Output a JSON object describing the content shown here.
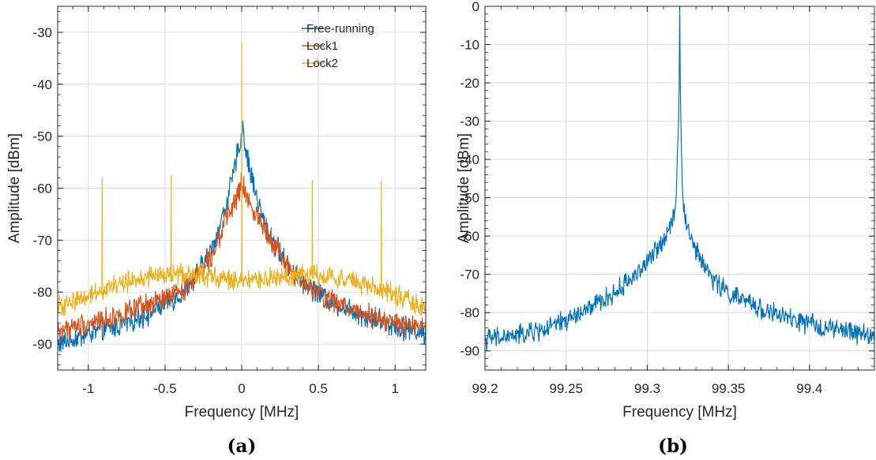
{
  "figure": {
    "panel_labels": [
      "(a)",
      "(b)"
    ]
  },
  "colors": {
    "free_running": "#0072BD",
    "lock1": "#D95319",
    "lock2": "#EDB120",
    "grid": "#dcdcdc",
    "axis": "#262626"
  },
  "chart_data": [
    {
      "type": "line",
      "panel": "(a)",
      "xlabel": "Frequency [MHz]",
      "ylabel": "Amplitude [dBm]",
      "xlim": [
        -1.2,
        1.2
      ],
      "ylim": [
        -95,
        -25
      ],
      "xticks": [
        -1,
        -0.5,
        0,
        0.5,
        1
      ],
      "xtick_labels": [
        "-1",
        "-0.5",
        "0",
        "0.5",
        "1"
      ],
      "yticks": [
        -30,
        -40,
        -50,
        -60,
        -70,
        -80,
        -90
      ],
      "ytick_labels": [
        "-30",
        "-40",
        "-50",
        "-60",
        "-70",
        "-80",
        "-90"
      ],
      "grid": true,
      "legend_position": "top-right",
      "series": [
        {
          "name": "Free-running",
          "color": "#0072BD",
          "noise": 1.8,
          "points": [
            [
              -1.2,
              -90
            ],
            [
              -1.0,
              -88
            ],
            [
              -0.8,
              -86.5
            ],
            [
              -0.6,
              -84
            ],
            [
              -0.4,
              -80.5
            ],
            [
              -0.3,
              -77
            ],
            [
              -0.2,
              -72
            ],
            [
              -0.15,
              -68
            ],
            [
              -0.1,
              -63
            ],
            [
              -0.05,
              -57
            ],
            [
              -0.02,
              -52
            ],
            [
              0,
              -50
            ],
            [
              0.01,
              -47
            ],
            [
              0.02,
              -52
            ],
            [
              0.05,
              -56
            ],
            [
              0.1,
              -62
            ],
            [
              0.15,
              -67
            ],
            [
              0.2,
              -70
            ],
            [
              0.3,
              -75
            ],
            [
              0.4,
              -78
            ],
            [
              0.6,
              -82
            ],
            [
              0.8,
              -84.5
            ],
            [
              1.0,
              -86.5
            ],
            [
              1.2,
              -88
            ]
          ],
          "spikes": []
        },
        {
          "name": "Lock1",
          "color": "#D95319",
          "noise": 1.8,
          "points": [
            [
              -1.2,
              -87.5
            ],
            [
              -1.0,
              -86
            ],
            [
              -0.8,
              -84.5
            ],
            [
              -0.6,
              -82.5
            ],
            [
              -0.4,
              -80
            ],
            [
              -0.3,
              -77
            ],
            [
              -0.2,
              -73
            ],
            [
              -0.1,
              -66
            ],
            [
              -0.05,
              -63
            ],
            [
              -0.02,
              -61
            ],
            [
              0,
              -59
            ],
            [
              0.02,
              -61
            ],
            [
              0.05,
              -63
            ],
            [
              0.1,
              -65
            ],
            [
              0.2,
              -70
            ],
            [
              0.3,
              -75
            ],
            [
              0.4,
              -78.5
            ],
            [
              0.6,
              -82
            ],
            [
              0.8,
              -84
            ],
            [
              1.0,
              -86
            ],
            [
              1.2,
              -87
            ]
          ],
          "spikes": []
        },
        {
          "name": "Lock2",
          "color": "#EDB120",
          "noise": 1.6,
          "points": [
            [
              -1.2,
              -83
            ],
            [
              -1.0,
              -80.5
            ],
            [
              -0.8,
              -78.5
            ],
            [
              -0.6,
              -77
            ],
            [
              -0.4,
              -76.5
            ],
            [
              -0.2,
              -77
            ],
            [
              0,
              -78
            ],
            [
              0.2,
              -77.5
            ],
            [
              0.4,
              -76.5
            ],
            [
              0.6,
              -77
            ],
            [
              0.8,
              -78.5
            ],
            [
              1.0,
              -80.5
            ],
            [
              1.2,
              -83
            ]
          ],
          "spikes": [
            [
              -0.91,
              -58
            ],
            [
              -0.46,
              -57.5
            ],
            [
              0,
              -31.8
            ],
            [
              0.46,
              -58.5
            ],
            [
              0.91,
              -58.5
            ]
          ]
        }
      ]
    },
    {
      "type": "line",
      "panel": "(b)",
      "xlabel": "Frequency [MHz]",
      "ylabel": "Amplitude [dBm]",
      "xlim": [
        99.2,
        99.44
      ],
      "ylim": [
        -95,
        0
      ],
      "xticks": [
        99.2,
        99.25,
        99.3,
        99.35,
        99.4
      ],
      "xtick_labels": [
        "99.2",
        "99.25",
        "99.3",
        "99.35",
        "99.4"
      ],
      "yticks": [
        0,
        -10,
        -20,
        -30,
        -40,
        -50,
        -60,
        -70,
        -80,
        -90
      ],
      "ytick_labels": [
        "0",
        "-10",
        "-20",
        "-30",
        "-40",
        "-50",
        "-60",
        "-70",
        "-80",
        "-90"
      ],
      "grid": true,
      "series": [
        {
          "color": "#0072BD",
          "noise": 2.2,
          "points": [
            [
              99.2,
              -87
            ],
            [
              99.22,
              -86
            ],
            [
              99.24,
              -84
            ],
            [
              99.26,
              -80
            ],
            [
              99.28,
              -75
            ],
            [
              99.29,
              -71
            ],
            [
              99.3,
              -67
            ],
            [
              99.31,
              -61
            ],
            [
              99.315,
              -56
            ],
            [
              99.318,
              -50
            ],
            [
              99.3195,
              -25
            ],
            [
              99.32,
              -0.5
            ],
            [
              99.3205,
              -25
            ],
            [
              99.322,
              -52
            ],
            [
              99.325,
              -58
            ],
            [
              99.33,
              -64
            ],
            [
              99.34,
              -71
            ],
            [
              99.35,
              -75
            ],
            [
              99.37,
              -79
            ],
            [
              99.39,
              -82
            ],
            [
              99.41,
              -84
            ],
            [
              99.44,
              -86
            ]
          ],
          "spikes": []
        }
      ]
    }
  ]
}
